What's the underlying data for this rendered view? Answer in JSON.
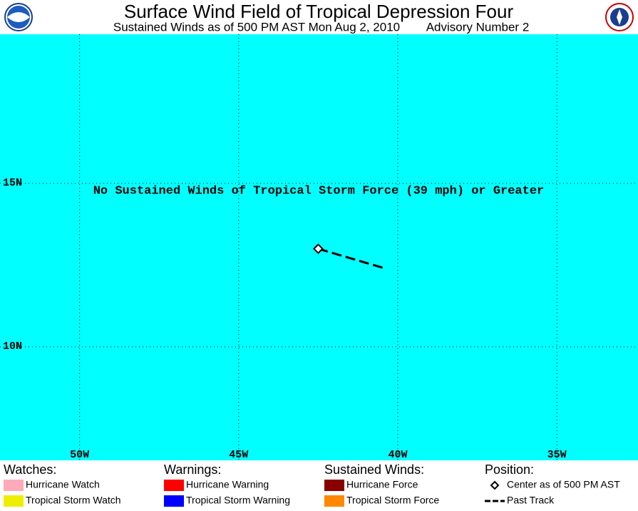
{
  "map": {
    "title": "Surface Wind Field of Tropical Depression Four",
    "subtitle": "Sustained Winds as of 500 PM AST Mon Aug 2, 2010",
    "advisory": "Advisory Number 2",
    "annotation": "No Sustained Winds of Tropical Storm Force (39 mph) or Greater",
    "background": "#00ffff",
    "grid": true,
    "xlim": [
      -52.5,
      -32.45
    ],
    "ylim": [
      6.53,
      19.56
    ],
    "xticks": [
      {
        "value": -50,
        "label": "50W"
      },
      {
        "value": -45,
        "label": "45W"
      },
      {
        "value": -40,
        "label": "40W"
      },
      {
        "value": -35,
        "label": "35W"
      }
    ],
    "yticks": [
      {
        "value": 10,
        "label": "10N"
      },
      {
        "value": 15,
        "label": "15N"
      }
    ],
    "track": {
      "lon": [
        -42.5,
        -40.4
      ],
      "lat": [
        13.0,
        12.4
      ]
    },
    "legend": [
      {
        "heading": "Watches:",
        "items": [
          {
            "label": "Hurricane Watch",
            "color": "#ffaabb"
          },
          {
            "label": "Tropical Storm Watch",
            "color": "#eeee00"
          }
        ]
      },
      {
        "heading": "Warnings:",
        "items": [
          {
            "label": "Hurricane Warning",
            "color": "#ff0000"
          },
          {
            "label": "Tropical Storm Warning",
            "color": "#0000ff"
          }
        ]
      },
      {
        "heading": "Sustained Winds:",
        "items": [
          {
            "label": "Hurricane Force",
            "color": "#880000"
          },
          {
            "label": "Tropical Storm Force",
            "color": "#ff8800"
          }
        ]
      },
      {
        "heading": "Position:",
        "items": [
          {
            "label": "Center as of 500 PM AST"
          },
          {
            "label": "Past Track"
          }
        ]
      }
    ]
  }
}
